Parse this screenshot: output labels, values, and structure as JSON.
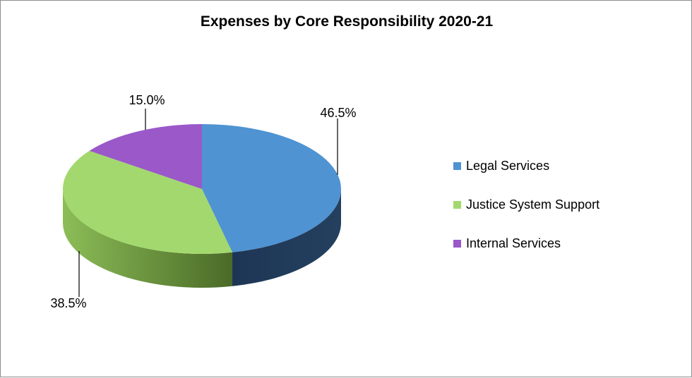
{
  "chart_data": {
    "type": "pie",
    "title": "Expenses by Core Responsibility 2020-21",
    "labels": [
      "Legal Services",
      "Justice System Support",
      "Internal Services"
    ],
    "values": [
      46.5,
      38.5,
      15.0
    ],
    "data_labels": [
      "46.5%",
      "38.5%",
      "15.0%"
    ],
    "colors": [
      "#4f93d2",
      "#a2d86d",
      "#9a58c9"
    ],
    "three_d": true,
    "legend_position": "right"
  }
}
